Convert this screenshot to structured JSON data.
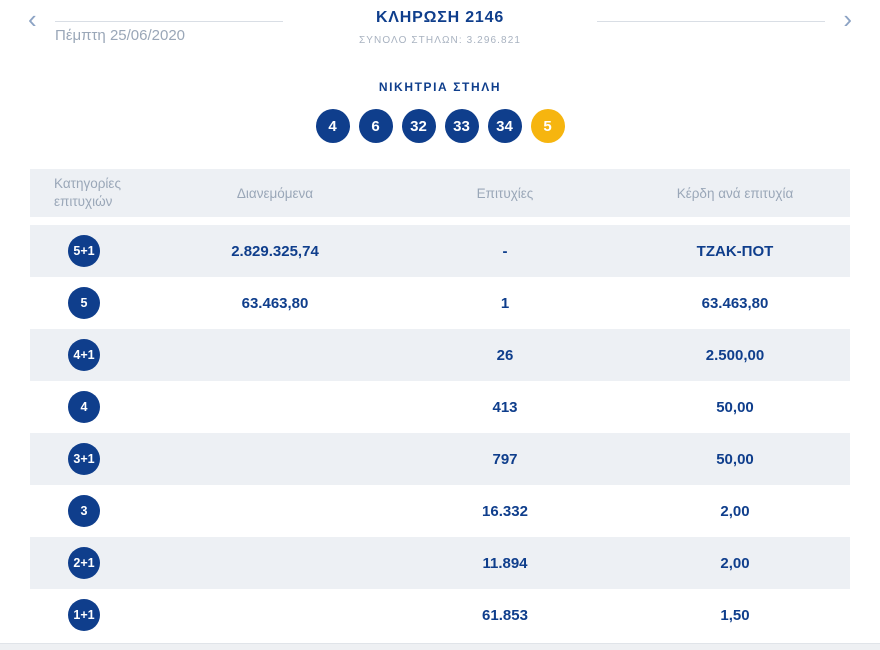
{
  "header": {
    "title": "ΚΛΗΡΩΣΗ 2146",
    "subtitle": "ΣΥΝΟΛΟ ΣΤΗΛΩΝ: 3.296.821",
    "date": "Πέμπτη 25/06/2020",
    "prev_icon": "‹",
    "next_icon": "›"
  },
  "winning": {
    "label": "ΝΙΚΗΤΡΙΑ ΣΤΗΛΗ",
    "numbers": [
      "4",
      "6",
      "32",
      "33",
      "34"
    ],
    "joker": "5"
  },
  "table": {
    "columns": [
      "Κατηγορίες επιτυχιών",
      "Διανεμόμενα",
      "Επιτυχίες",
      "Κέρδη ανά επιτυχία"
    ],
    "rows": [
      {
        "category": "5+1",
        "distributed": "2.829.325,74",
        "winners": "-",
        "prize": "ΤΖΑΚ-ΠΟΤ"
      },
      {
        "category": "5",
        "distributed": "63.463,80",
        "winners": "1",
        "prize": "63.463,80"
      },
      {
        "category": "4+1",
        "distributed": "",
        "winners": "26",
        "prize": "2.500,00"
      },
      {
        "category": "4",
        "distributed": "",
        "winners": "413",
        "prize": "50,00"
      },
      {
        "category": "3+1",
        "distributed": "",
        "winners": "797",
        "prize": "50,00"
      },
      {
        "category": "3",
        "distributed": "",
        "winners": "16.332",
        "prize": "2,00"
      },
      {
        "category": "2+1",
        "distributed": "",
        "winners": "11.894",
        "prize": "2,00"
      },
      {
        "category": "1+1",
        "distributed": "",
        "winners": "61.853",
        "prize": "1,50"
      }
    ]
  },
  "colors": {
    "primary_blue": "#0f3e8c",
    "joker_gold": "#f6b50f",
    "row_gray": "#edf0f4",
    "muted_text": "#9aa7b8"
  }
}
